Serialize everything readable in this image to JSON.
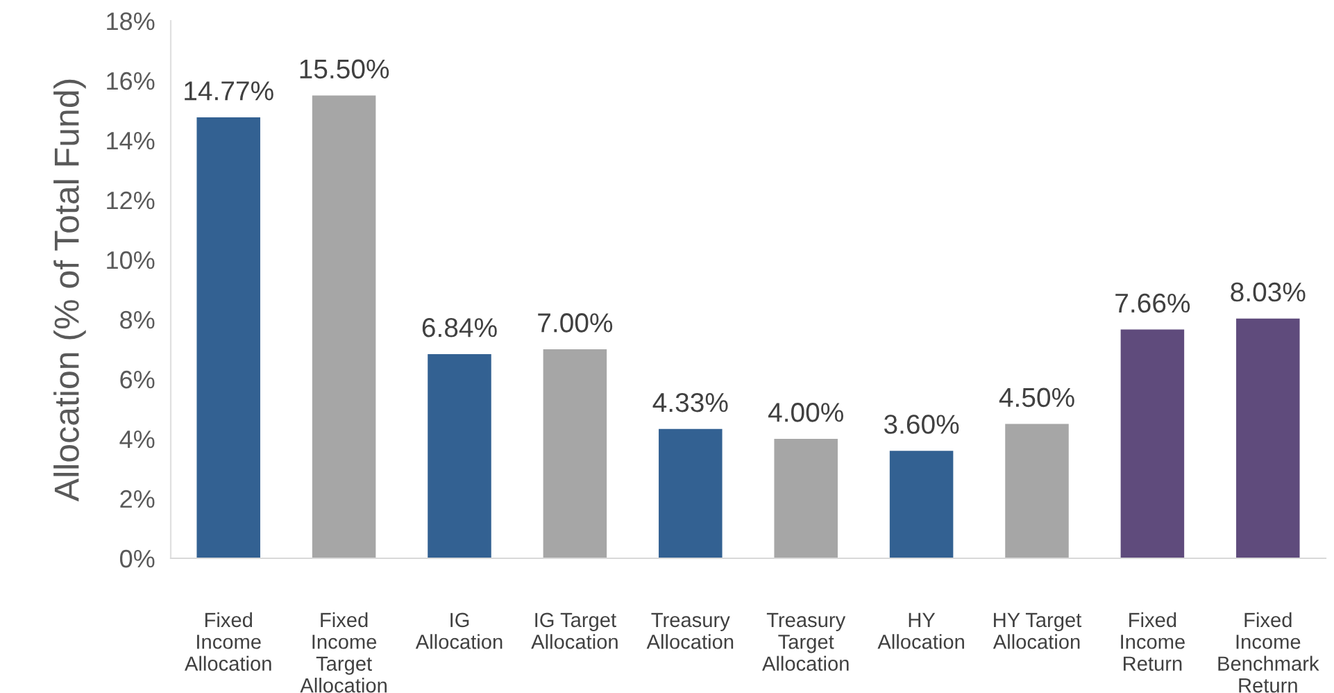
{
  "chart_data": {
    "type": "bar",
    "ylabel": "Allocation (% of Total Fund)",
    "categories": [
      "Fixed\nIncome\nAllocation",
      "Fixed\nIncome\nTarget\nAllocation",
      "IG\nAllocation",
      "IG Target\nAllocation",
      "Treasury\nAllocation",
      "Treasury\nTarget\nAllocation",
      "HY\nAllocation",
      "HY Target\nAllocation",
      "Fixed\nIncome\nReturn",
      "Fixed\nIncome\nBenchmark\nReturn"
    ],
    "values": [
      14.77,
      15.5,
      6.84,
      7.0,
      4.33,
      4.0,
      3.6,
      4.5,
      7.66,
      8.03
    ],
    "value_labels": [
      "14.77%",
      "15.50%",
      "6.84%",
      "7.00%",
      "4.33%",
      "4.00%",
      "3.60%",
      "4.50%",
      "7.66%",
      "8.03%"
    ],
    "colors": [
      "#336192",
      "#a6a6a6",
      "#336192",
      "#a6a6a6",
      "#336192",
      "#a6a6a6",
      "#336192",
      "#a6a6a6",
      "#5f4b7c",
      "#5f4b7c"
    ],
    "ylim": [
      0,
      18
    ],
    "yticks": [
      {
        "value": 0,
        "label": "0%"
      },
      {
        "value": 2,
        "label": "2%"
      },
      {
        "value": 4,
        "label": "4%"
      },
      {
        "value": 6,
        "label": "6%"
      },
      {
        "value": 8,
        "label": "8%"
      },
      {
        "value": 10,
        "label": "10%"
      },
      {
        "value": 12,
        "label": "12%"
      },
      {
        "value": 14,
        "label": "14%"
      },
      {
        "value": 16,
        "label": "16%"
      },
      {
        "value": 18,
        "label": "18%"
      }
    ],
    "grid": false,
    "legend": false
  }
}
